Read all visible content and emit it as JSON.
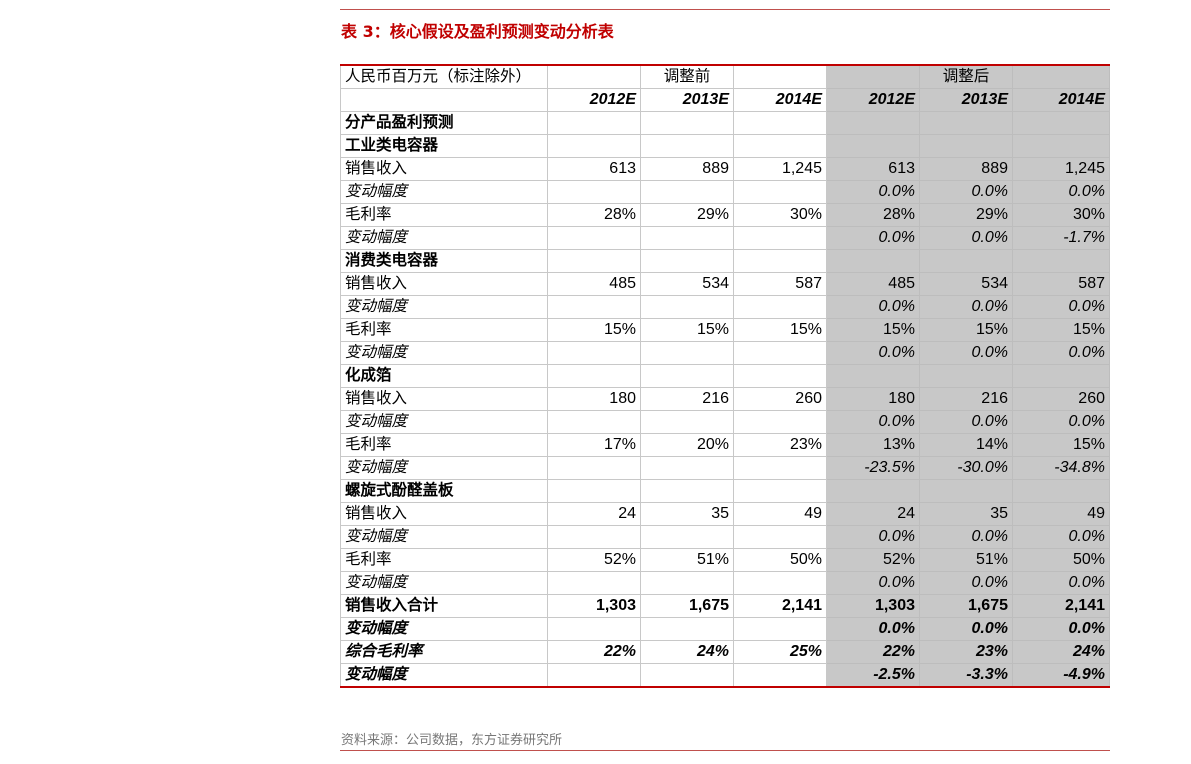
{
  "title": "表 3：核心假设及盈利预测变动分析表",
  "table": {
    "unit_label": "人民币百万元（标注除外）",
    "group_before": "调整前",
    "group_after": "调整后",
    "years": [
      "2012E",
      "2013E",
      "2014E",
      "2012E",
      "2013E",
      "2014E"
    ],
    "rows": [
      {
        "type": "section",
        "label": "分产品盈利预测",
        "values": [
          "",
          "",
          "",
          "",
          "",
          ""
        ]
      },
      {
        "type": "section",
        "label": "工业类电容器",
        "values": [
          "",
          "",
          "",
          "",
          "",
          ""
        ]
      },
      {
        "type": "normal",
        "label": "销售收入",
        "values": [
          "613",
          "889",
          "1,245",
          "613",
          "889",
          "1,245"
        ]
      },
      {
        "type": "change",
        "label": "变动幅度",
        "values": [
          "",
          "",
          "",
          "0.0%",
          "0.0%",
          "0.0%"
        ]
      },
      {
        "type": "normal",
        "label": "毛利率",
        "values": [
          "28%",
          "29%",
          "30%",
          "28%",
          "29%",
          "30%"
        ]
      },
      {
        "type": "change",
        "label": "变动幅度",
        "values": [
          "",
          "",
          "",
          "0.0%",
          "0.0%",
          "-1.7%"
        ]
      },
      {
        "type": "section",
        "label": "消费类电容器",
        "values": [
          "",
          "",
          "",
          "",
          "",
          ""
        ]
      },
      {
        "type": "normal",
        "label": "销售收入",
        "values": [
          "485",
          "534",
          "587",
          "485",
          "534",
          "587"
        ]
      },
      {
        "type": "change",
        "label": "变动幅度",
        "values": [
          "",
          "",
          "",
          "0.0%",
          "0.0%",
          "0.0%"
        ]
      },
      {
        "type": "normal",
        "label": "毛利率",
        "values": [
          "15%",
          "15%",
          "15%",
          "15%",
          "15%",
          "15%"
        ]
      },
      {
        "type": "change",
        "label": "变动幅度",
        "values": [
          "",
          "",
          "",
          "0.0%",
          "0.0%",
          "0.0%"
        ]
      },
      {
        "type": "section",
        "label": "化成箔",
        "values": [
          "",
          "",
          "",
          "",
          "",
          ""
        ]
      },
      {
        "type": "normal",
        "label": "销售收入",
        "values": [
          "180",
          "216",
          "260",
          "180",
          "216",
          "260"
        ]
      },
      {
        "type": "change",
        "label": "变动幅度",
        "values": [
          "",
          "",
          "",
          "0.0%",
          "0.0%",
          "0.0%"
        ]
      },
      {
        "type": "normal",
        "label": "毛利率",
        "values": [
          "17%",
          "20%",
          "23%",
          "13%",
          "14%",
          "15%"
        ]
      },
      {
        "type": "change",
        "label": "变动幅度",
        "values": [
          "",
          "",
          "",
          "-23.5%",
          "-30.0%",
          "-34.8%"
        ]
      },
      {
        "type": "section",
        "label": "螺旋式酚醛盖板",
        "values": [
          "",
          "",
          "",
          "",
          "",
          ""
        ]
      },
      {
        "type": "normal",
        "label": "销售收入",
        "values": [
          "24",
          "35",
          "49",
          "24",
          "35",
          "49"
        ]
      },
      {
        "type": "change",
        "label": "变动幅度",
        "values": [
          "",
          "",
          "",
          "0.0%",
          "0.0%",
          "0.0%"
        ]
      },
      {
        "type": "normal",
        "label": "毛利率",
        "values": [
          "52%",
          "51%",
          "50%",
          "52%",
          "51%",
          "50%"
        ]
      },
      {
        "type": "change",
        "label": "变动幅度",
        "values": [
          "",
          "",
          "",
          "0.0%",
          "0.0%",
          "0.0%"
        ]
      },
      {
        "type": "total",
        "label": "销售收入合计",
        "values": [
          "1,303",
          "1,675",
          "2,141",
          "1,303",
          "1,675",
          "2,141"
        ]
      },
      {
        "type": "total-change",
        "label": "变动幅度",
        "values": [
          "",
          "",
          "",
          "0.0%",
          "0.0%",
          "0.0%"
        ]
      },
      {
        "type": "total-change",
        "label": "综合毛利率",
        "values": [
          "22%",
          "24%",
          "25%",
          "22%",
          "23%",
          "24%"
        ]
      },
      {
        "type": "total-change",
        "label": "变动幅度",
        "values": [
          "",
          "",
          "",
          "-2.5%",
          "-3.3%",
          "-4.9%"
        ]
      }
    ]
  },
  "source": "资料来源：公司数据，东方证券研究所",
  "colors": {
    "accent": "#c00000",
    "adjusted_bg": "#c8c8c8",
    "border": "#c8c8c8"
  }
}
